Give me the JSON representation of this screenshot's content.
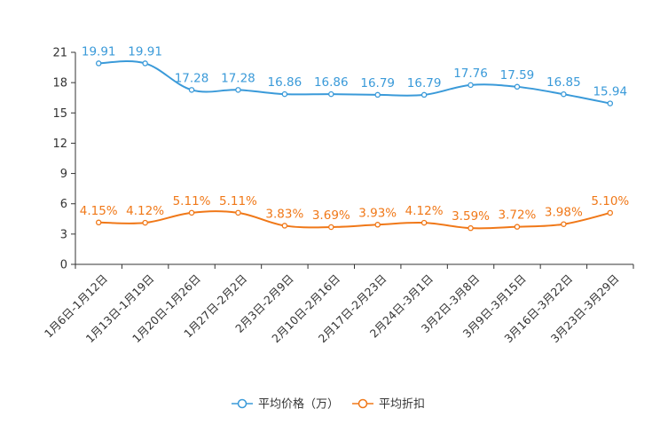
{
  "chart_data": {
    "type": "line",
    "title": "",
    "xlabel": "",
    "ylabel": "",
    "ylim": [
      0,
      21
    ],
    "yticks": [
      0,
      3,
      6,
      9,
      12,
      15,
      18,
      21
    ],
    "grid": false,
    "legend_position": "bottom-center",
    "categories": [
      "1月6日-1月12日",
      "1月13日-1月19日",
      "1月20日-1月26日",
      "1月27日-2月2日",
      "2月3日-2月9日",
      "2月10日-2月16日",
      "2月17日-2月23日",
      "2月24日-3月1日",
      "3月2日-3月8日",
      "3月9日-3月15日",
      "3月16日-3月22日",
      "3月23日-3月29日"
    ],
    "series": [
      {
        "name": "平均价格（万）",
        "color": "#3a9ad9",
        "values": [
          19.91,
          19.91,
          17.28,
          17.28,
          16.86,
          16.86,
          16.79,
          16.79,
          17.76,
          17.59,
          16.85,
          15.94
        ],
        "labels": [
          "19.91",
          "19.91",
          "17.28",
          "17.28",
          "16.86",
          "16.86",
          "16.79",
          "16.79",
          "17.76",
          "17.59",
          "16.85",
          "15.94"
        ]
      },
      {
        "name": "平均折扣",
        "color": "#f07818",
        "values": [
          4.15,
          4.12,
          5.11,
          5.11,
          3.83,
          3.69,
          3.93,
          4.12,
          3.59,
          3.72,
          3.98,
          5.1
        ],
        "labels": [
          "4.15%",
          "4.12%",
          "5.11%",
          "5.11%",
          "3.83%",
          "3.69%",
          "3.93%",
          "4.12%",
          "3.59%",
          "3.72%",
          "3.98%",
          "5.10%"
        ]
      }
    ]
  }
}
